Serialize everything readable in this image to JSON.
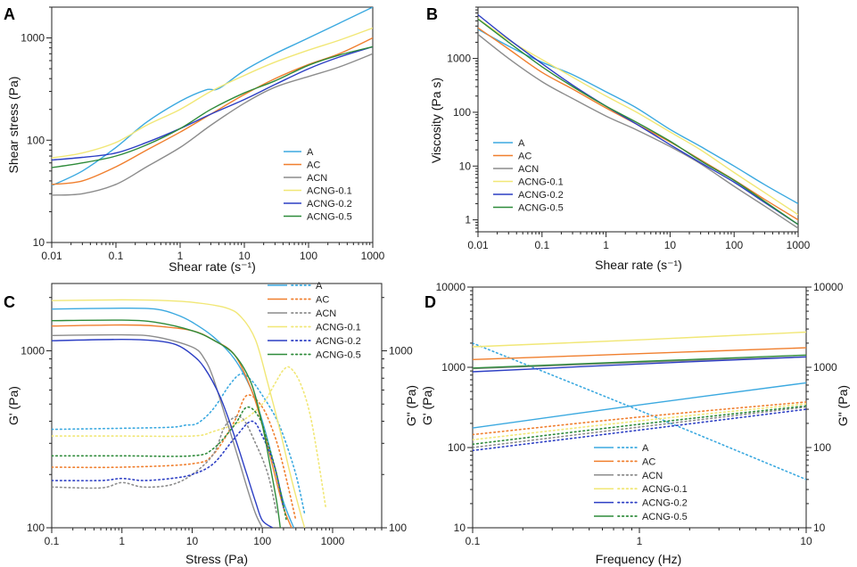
{
  "colors": {
    "A": "#3ba9e0",
    "AC": "#f07f2e",
    "ACN": "#8c8c8c",
    "ACNG-0.1": "#f1e776",
    "ACNG-0.2": "#2c3ec4",
    "ACNG-0.5": "#2e8b3a"
  },
  "chart_data": [
    {
      "panel_label": "A",
      "type": "line",
      "xlabel": "Shear rate",
      "xunit": "(s⁻¹)",
      "ylabel": "Shear stress (Pa)",
      "xscale": "log",
      "yscale": "log",
      "xlim": [
        0.01,
        1000
      ],
      "ylim": [
        10,
        2000
      ],
      "x_ticks": [
        "0.01",
        "0.1",
        "1",
        "10",
        "100",
        "1000"
      ],
      "y_ticks": [
        "10",
        "100",
        "1000"
      ],
      "legend_position": "bottom-right",
      "series": [
        {
          "name": "A",
          "x": [
            0.01,
            0.03,
            0.1,
            0.3,
            1,
            2.5,
            4,
            10,
            30,
            100,
            1000
          ],
          "y": [
            36,
            50,
            85,
            150,
            240,
            310,
            320,
            480,
            700,
            1000,
            2000
          ]
        },
        {
          "name": "AC",
          "x": [
            0.01,
            0.03,
            0.1,
            0.3,
            1,
            3,
            10,
            30,
            100,
            300,
            1000
          ],
          "y": [
            37,
            40,
            55,
            80,
            120,
            180,
            280,
            400,
            550,
            700,
            1000
          ]
        },
        {
          "name": "ACN",
          "x": [
            0.01,
            0.03,
            0.1,
            0.3,
            1,
            3,
            10,
            30,
            100,
            300,
            1000
          ],
          "y": [
            29,
            30,
            37,
            55,
            85,
            140,
            230,
            330,
            420,
            520,
            700
          ]
        },
        {
          "name": "ACNG-0.1",
          "x": [
            0.01,
            0.03,
            0.1,
            0.3,
            1,
            3,
            10,
            30,
            100,
            300,
            1000
          ],
          "y": [
            67,
            75,
            95,
            140,
            200,
            300,
            430,
            580,
            760,
            950,
            1250
          ]
        },
        {
          "name": "ACNG-0.2",
          "x": [
            0.01,
            0.03,
            0.1,
            0.3,
            1,
            3,
            10,
            30,
            100,
            300,
            1000
          ],
          "y": [
            64,
            68,
            75,
            95,
            130,
            180,
            250,
            350,
            500,
            650,
            820
          ]
        },
        {
          "name": "ACNG-0.5",
          "x": [
            0.01,
            0.03,
            0.1,
            0.3,
            1,
            3,
            10,
            30,
            100,
            300,
            1000
          ],
          "y": [
            54,
            60,
            70,
            90,
            130,
            200,
            290,
            380,
            540,
            680,
            820
          ]
        }
      ]
    },
    {
      "panel_label": "B",
      "type": "line",
      "xlabel": "Shear rate",
      "xunit": "(s⁻¹)",
      "ylabel": "Viscosity (Pa s)",
      "xscale": "log",
      "yscale": "log",
      "xlim": [
        0.01,
        1000
      ],
      "ylim": [
        0.6,
        9000
      ],
      "x_ticks": [
        "0.01",
        "0.1",
        "1",
        "10",
        "100",
        "1000"
      ],
      "y_ticks": [
        "1",
        "10",
        "100",
        "1000"
      ],
      "legend_position": "bottom-left",
      "series": [
        {
          "name": "A",
          "x": [
            0.01,
            0.03,
            0.1,
            0.3,
            1,
            3,
            10,
            30,
            100,
            300,
            1000
          ],
          "y": [
            3500,
            1700,
            850,
            500,
            240,
            120,
            48,
            23,
            10,
            4.5,
            2.0
          ]
        },
        {
          "name": "AC",
          "x": [
            0.01,
            0.03,
            0.1,
            0.3,
            1,
            3,
            10,
            30,
            100,
            300,
            1000
          ],
          "y": [
            3700,
            1500,
            550,
            270,
            120,
            60,
            28,
            13,
            5.5,
            2.4,
            1.0
          ]
        },
        {
          "name": "ACN",
          "x": [
            0.01,
            0.03,
            0.1,
            0.3,
            1,
            3,
            10,
            30,
            100,
            300,
            1000
          ],
          "y": [
            2800,
            1000,
            370,
            180,
            85,
            47,
            23,
            11,
            4.2,
            1.8,
            0.7
          ]
        },
        {
          "name": "ACNG-0.1",
          "x": [
            0.01,
            0.03,
            0.1,
            0.3,
            1,
            3,
            10,
            30,
            100,
            300,
            1000
          ],
          "y": [
            5500,
            2200,
            950,
            450,
            200,
            100,
            43,
            20,
            7.6,
            3.2,
            1.25
          ]
        },
        {
          "name": "ACNG-0.2",
          "x": [
            0.01,
            0.03,
            0.1,
            0.3,
            1,
            3,
            10,
            30,
            100,
            300,
            1000
          ],
          "y": [
            6500,
            2300,
            800,
            320,
            130,
            60,
            25,
            11.5,
            5.0,
            2.1,
            0.82
          ]
        },
        {
          "name": "ACNG-0.5",
          "x": [
            0.01,
            0.03,
            0.1,
            0.3,
            1,
            3,
            10,
            30,
            100,
            300,
            1000
          ],
          "y": [
            5400,
            2000,
            700,
            300,
            130,
            65,
            29,
            12.5,
            5.4,
            2.2,
            0.82
          ]
        }
      ]
    },
    {
      "panel_label": "C",
      "type": "line",
      "xlabel": "Stress (Pa)",
      "ylabel": "G' (Pa)",
      "y2label": "G\" (Pa)",
      "xscale": "log",
      "yscale": "log",
      "xlim": [
        0.1,
        5000
      ],
      "ylim": [
        100,
        2400
      ],
      "x_ticks": [
        "0.1",
        "1",
        "10",
        "100",
        "1000"
      ],
      "y_ticks": [
        "100",
        "1000"
      ],
      "y2_ticks": [
        "100",
        "1000"
      ],
      "legend_position": "top-right",
      "series": [
        {
          "name": "A",
          "kind": "G'",
          "x": [
            0.1,
            1,
            3,
            6,
            10,
            20,
            40,
            70,
            100,
            150,
            200,
            280
          ],
          "y": [
            1720,
            1740,
            1720,
            1600,
            1450,
            1200,
            900,
            600,
            400,
            220,
            140,
            100
          ]
        },
        {
          "name": "A",
          "kind": "G\"",
          "x": [
            0.1,
            1,
            5,
            8,
            12,
            20,
            35,
            50,
            70,
            100,
            150,
            200,
            300,
            400
          ],
          "y": [
            360,
            365,
            370,
            380,
            390,
            470,
            650,
            740,
            680,
            560,
            430,
            330,
            200,
            120
          ]
        },
        {
          "name": "AC",
          "kind": "G'",
          "x": [
            0.1,
            1,
            3,
            10,
            20,
            40,
            70,
            100,
            150,
            200,
            260
          ],
          "y": [
            1380,
            1400,
            1380,
            1300,
            1150,
            950,
            600,
            380,
            200,
            130,
            100
          ]
        },
        {
          "name": "AC",
          "kind": "G\"",
          "x": [
            0.1,
            1,
            10,
            20,
            40,
            60,
            100,
            150,
            200,
            300
          ],
          "y": [
            220,
            220,
            230,
            260,
            400,
            560,
            480,
            330,
            220,
            110
          ]
        },
        {
          "name": "ACN",
          "kind": "G'",
          "x": [
            0.1,
            1,
            3,
            10,
            15,
            20,
            30,
            45,
            60,
            80,
            100
          ],
          "y": [
            1220,
            1230,
            1200,
            1050,
            900,
            700,
            420,
            250,
            170,
            120,
            100
          ]
        },
        {
          "name": "ACN",
          "kind": "G\"",
          "x": [
            0.1,
            0.5,
            1,
            2,
            5,
            10,
            20,
            30,
            50,
            80,
            120,
            160
          ],
          "y": [
            170,
            168,
            180,
            170,
            175,
            200,
            260,
            380,
            420,
            300,
            200,
            120
          ]
        },
        {
          "name": "ACNG-0.1",
          "kind": "G'",
          "x": [
            0.1,
            1,
            3,
            10,
            30,
            50,
            80,
            120,
            180,
            250,
            350,
            400
          ],
          "y": [
            1920,
            1940,
            1930,
            1880,
            1750,
            1550,
            1150,
            650,
            350,
            200,
            120,
            100
          ]
        },
        {
          "name": "ACNG-0.1",
          "kind": "G\"",
          "x": [
            0.1,
            1,
            10,
            20,
            50,
            100,
            150,
            200,
            250,
            350,
            500,
            800
          ],
          "y": [
            330,
            330,
            330,
            350,
            400,
            500,
            650,
            780,
            800,
            650,
            400,
            130
          ]
        },
        {
          "name": "ACNG-0.2",
          "kind": "G'",
          "x": [
            0.1,
            1,
            3,
            6,
            10,
            15,
            25,
            40,
            60,
            80,
            100,
            140
          ],
          "y": [
            1140,
            1160,
            1140,
            1080,
            950,
            800,
            550,
            330,
            200,
            140,
            110,
            100
          ]
        },
        {
          "name": "ACNG-0.2",
          "kind": "G\"",
          "x": [
            0.1,
            0.5,
            1,
            2,
            5,
            10,
            20,
            40,
            70,
            100,
            150,
            200
          ],
          "y": [
            185,
            185,
            190,
            185,
            190,
            200,
            230,
            320,
            400,
            330,
            220,
            130
          ]
        },
        {
          "name": "ACNG-0.5",
          "kind": "G'",
          "x": [
            0.1,
            1,
            3,
            10,
            20,
            40,
            70,
            100,
            130,
            160,
            180
          ],
          "y": [
            1480,
            1490,
            1450,
            1300,
            1150,
            950,
            650,
            380,
            220,
            140,
            100
          ]
        },
        {
          "name": "ACNG-0.5",
          "kind": "G\"",
          "x": [
            0.1,
            1,
            10,
            20,
            40,
            60,
            90,
            120,
            160,
            220
          ],
          "y": [
            255,
            255,
            255,
            280,
            380,
            480,
            420,
            300,
            200,
            110
          ]
        }
      ]
    },
    {
      "panel_label": "D",
      "type": "line",
      "xlabel": "Frequency (Hz)",
      "ylabel": "G' (Pa)",
      "y2label": "G\" (Pa)",
      "xscale": "log",
      "yscale": "log",
      "xlim": [
        0.1,
        10
      ],
      "ylim": [
        10,
        10000
      ],
      "y2lim": [
        10,
        10000
      ],
      "x_ticks": [
        "0.1",
        "1",
        "10"
      ],
      "y_ticks": [
        "10",
        "100",
        "1000",
        "10000"
      ],
      "y2_ticks": [
        "10",
        "100",
        "1000",
        "10000"
      ],
      "legend_position": "bottom-center",
      "series": [
        {
          "name": "A",
          "kind": "G'",
          "x": [
            0.1,
            1,
            10
          ],
          "y": [
            175,
            340,
            640
          ]
        },
        {
          "name": "A",
          "kind": "G\"",
          "x": [
            0.1,
            1,
            10
          ],
          "y": [
            2000,
            290,
            40
          ]
        },
        {
          "name": "AC",
          "kind": "G'",
          "x": [
            0.1,
            1,
            10
          ],
          "y": [
            1250,
            1480,
            1750
          ]
        },
        {
          "name": "AC",
          "kind": "G\"",
          "x": [
            0.1,
            1,
            10
          ],
          "y": [
            145,
            240,
            370
          ]
        },
        {
          "name": "ACN",
          "kind": "G'",
          "x": [
            0.1,
            1,
            10
          ],
          "y": [
            960,
            1150,
            1350
          ]
        },
        {
          "name": "ACN",
          "kind": "G\"",
          "x": [
            0.1,
            1,
            10
          ],
          "y": [
            100,
            180,
            320
          ]
        },
        {
          "name": "ACNG-0.1",
          "kind": "G'",
          "x": [
            0.1,
            1,
            10
          ],
          "y": [
            1800,
            2200,
            2750
          ]
        },
        {
          "name": "ACNG-0.1",
          "kind": "G\"",
          "x": [
            0.1,
            1,
            10
          ],
          "y": [
            125,
            215,
            350
          ]
        },
        {
          "name": "ACNG-0.2",
          "kind": "G'",
          "x": [
            0.1,
            1,
            10
          ],
          "y": [
            880,
            1100,
            1350
          ]
        },
        {
          "name": "ACNG-0.2",
          "kind": "G\"",
          "x": [
            0.1,
            1,
            10
          ],
          "y": [
            92,
            165,
            300
          ]
        },
        {
          "name": "ACNG-0.5",
          "kind": "G'",
          "x": [
            0.1,
            1,
            10
          ],
          "y": [
            980,
            1180,
            1420
          ]
        },
        {
          "name": "ACNG-0.5",
          "kind": "G\"",
          "x": [
            0.1,
            1,
            10
          ],
          "y": [
            110,
            195,
            330
          ]
        }
      ]
    }
  ]
}
